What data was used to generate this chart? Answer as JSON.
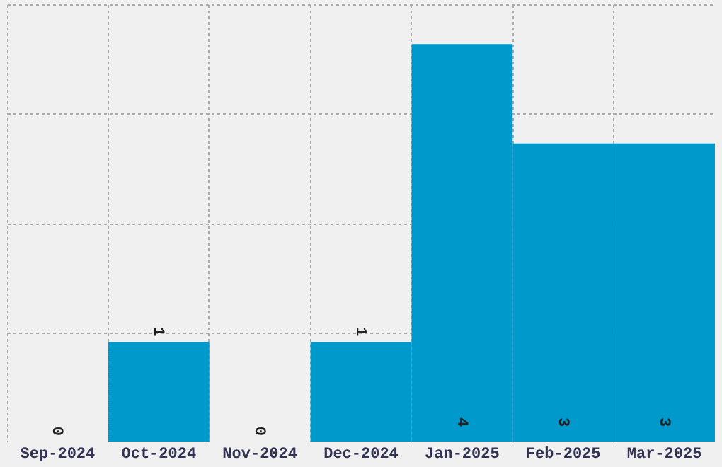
{
  "chart_data": {
    "type": "bar",
    "categories": [
      "Sep-2024",
      "Oct-2024",
      "Nov-2024",
      "Dec-2024",
      "Jan-2025",
      "Feb-2025",
      "Mar-2025"
    ],
    "values": [
      0,
      1,
      0,
      1,
      4,
      3,
      3
    ],
    "color": "#0099cc",
    "ylim": [
      0,
      4.4
    ],
    "yticks": [
      {
        "value": 1.1,
        "label": null
      },
      {
        "value": 2.2,
        "label": null
      },
      {
        "value": 3.3,
        "label": null
      },
      {
        "value": 4.4,
        "label": null
      }
    ],
    "grid": true,
    "data_labels": true,
    "tick_labels": "x"
  }
}
